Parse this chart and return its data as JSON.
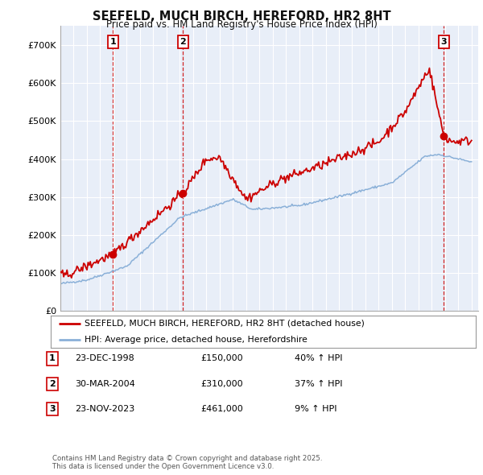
{
  "title": "SEEFELD, MUCH BIRCH, HEREFORD, HR2 8HT",
  "subtitle": "Price paid vs. HM Land Registry's House Price Index (HPI)",
  "ylim": [
    0,
    750000
  ],
  "yticks": [
    0,
    100000,
    200000,
    300000,
    400000,
    500000,
    600000,
    700000
  ],
  "ytick_labels": [
    "£0",
    "£100K",
    "£200K",
    "£300K",
    "£400K",
    "£500K",
    "£600K",
    "£700K"
  ],
  "xlim_start": 1995.0,
  "xlim_end": 2026.5,
  "background_color": "#ffffff",
  "plot_bg_color": "#e8eef8",
  "grid_color": "#ffffff",
  "red_line_color": "#cc0000",
  "blue_line_color": "#8ab0d8",
  "vline_color": "#cc0000",
  "sale_points": [
    {
      "year": 1998.97,
      "price": 150000,
      "label": "1"
    },
    {
      "year": 2004.24,
      "price": 310000,
      "label": "2"
    },
    {
      "year": 2023.9,
      "price": 461000,
      "label": "3"
    }
  ],
  "legend_entries": [
    "SEEFELD, MUCH BIRCH, HEREFORD, HR2 8HT (detached house)",
    "HPI: Average price, detached house, Herefordshire"
  ],
  "table_entries": [
    {
      "num": "1",
      "date": "23-DEC-1998",
      "price": "£150,000",
      "hpi": "40% ↑ HPI"
    },
    {
      "num": "2",
      "date": "30-MAR-2004",
      "price": "£310,000",
      "hpi": "37% ↑ HPI"
    },
    {
      "num": "3",
      "date": "23-NOV-2023",
      "price": "£461,000",
      "hpi": "9% ↑ HPI"
    }
  ],
  "footnote": "Contains HM Land Registry data © Crown copyright and database right 2025.\nThis data is licensed under the Open Government Licence v3.0."
}
